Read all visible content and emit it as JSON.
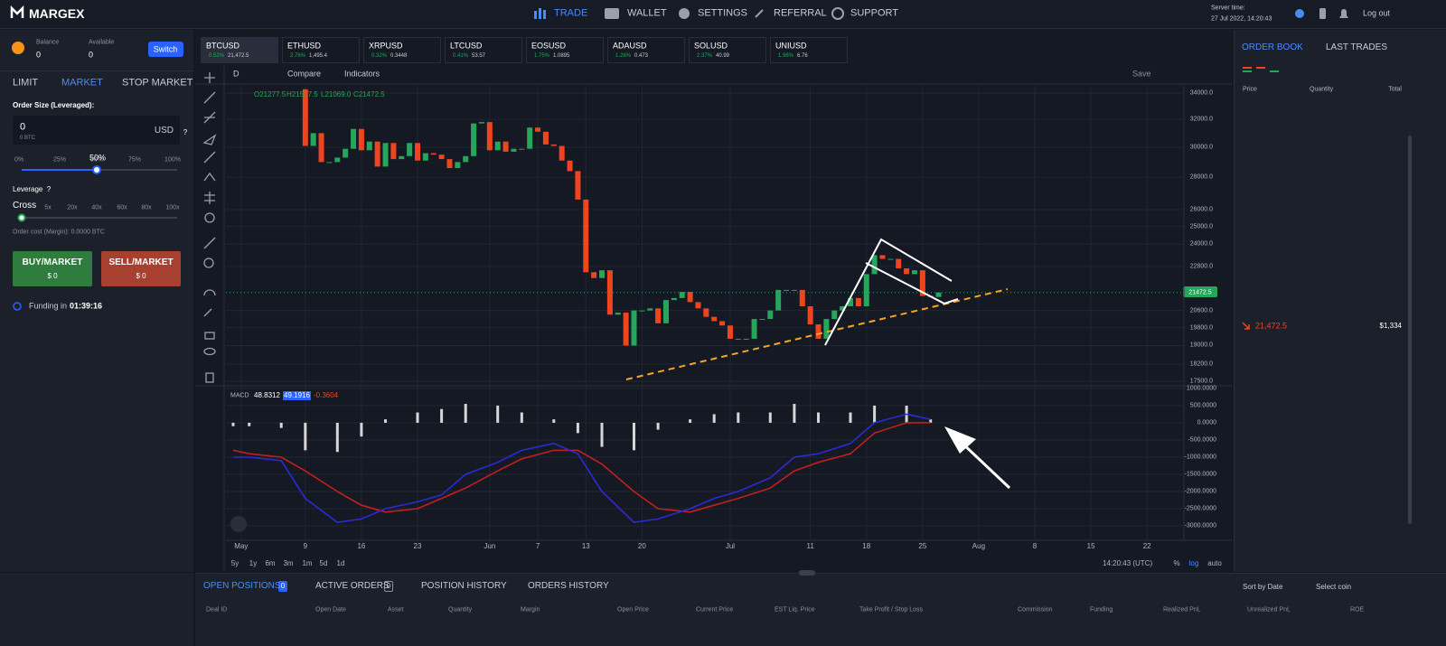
{
  "header": {
    "logo": "MARGEX",
    "nav": [
      "TRADE",
      "WALLET",
      "SETTINGS",
      "REFERRAL",
      "SUPPORT"
    ],
    "server_time_label": "Server time:",
    "server_time": "27 Jul 2022, 14:20:43",
    "logout": "Log out"
  },
  "order_panel": {
    "balance_label": "Balance",
    "balance": "0",
    "available_label": "Available",
    "available": "0",
    "switch": "Switch",
    "tabs": [
      "LIMIT",
      "MARKET",
      "STOP MARKET"
    ],
    "order_size_label": "Order Size (Leveraged):",
    "order_size": "0",
    "order_size_btc": "0 BTC",
    "currency": "USD",
    "help": "?",
    "percent_ticks": [
      "0%",
      "25%",
      "50%",
      "75%",
      "100%"
    ],
    "percent_selected": "50%",
    "leverage_label": "Leverage",
    "leverage_help": "?",
    "margin_mode": "Cross",
    "leverage_ticks": [
      "5x",
      "20x",
      "40x",
      "60x",
      "80x",
      "100x"
    ],
    "order_cost": "Order cost (Margin): 0.0000 BTC",
    "buy": {
      "label": "BUY/MARKET",
      "amount": "$ 0"
    },
    "sell": {
      "label": "SELL/MARKET",
      "amount": "$ 0"
    },
    "funding_label": "Funding in",
    "funding_time": "01:39:16"
  },
  "tickers": [
    {
      "symbol": "BTCUSD",
      "change": "0.52%",
      "price": "21,472.5"
    },
    {
      "symbol": "ETHUSD",
      "change": "2.76%",
      "price": "1,495.4"
    },
    {
      "symbol": "XRPUSD",
      "change": "0.32%",
      "price": "0.3448"
    },
    {
      "symbol": "LTCUSD",
      "change": "0.41%",
      "price": "53.57"
    },
    {
      "symbol": "EOSUSD",
      "change": "1.75%",
      "price": "1.0895"
    },
    {
      "symbol": "ADAUSD",
      "change": "1.26%",
      "price": "0.473"
    },
    {
      "symbol": "SOLUSD",
      "change": "2.37%",
      "price": "40.99"
    },
    {
      "symbol": "UNIUSD",
      "change": "1.96%",
      "price": "6.76"
    }
  ],
  "toolbar": {
    "interval": "D",
    "compare": "Compare",
    "indicators": "Indicators",
    "save": "Save"
  },
  "chart_data": {
    "type": "candlestick",
    "log_scale": true,
    "grid": true,
    "up_color": "#26a65b",
    "down_color": "#f0441f",
    "ohlc_legend": [
      "O21277.5",
      "H21507.5",
      "L21069.0",
      "C21472.5"
    ],
    "open": 34300,
    "x": [
      8,
      9,
      10,
      11,
      12,
      13,
      14,
      15,
      16,
      17,
      18,
      19,
      20,
      21,
      22,
      23,
      24,
      25,
      26,
      27,
      28,
      29,
      30,
      31,
      32,
      33,
      34,
      35,
      36,
      37,
      38,
      39,
      40,
      41,
      42,
      43,
      44,
      45,
      46,
      47,
      48,
      49,
      50,
      51,
      52,
      53,
      54,
      55,
      56,
      57,
      58,
      59,
      60,
      61,
      62,
      63,
      64,
      65,
      66,
      67,
      68,
      69,
      70,
      71,
      72,
      73,
      74,
      75,
      76,
      77,
      78,
      79,
      80,
      81,
      82,
      83,
      84,
      85,
      86,
      87
    ],
    "closes": [
      30100,
      31000,
      29000,
      29000,
      29300,
      29900,
      31300,
      29800,
      30400,
      28700,
      30300,
      29200,
      29400,
      30300,
      29100,
      29600,
      29500,
      29200,
      28600,
      29000,
      29400,
      31700,
      31800,
      29800,
      30400,
      29700,
      29900,
      29900,
      31400,
      31100,
      30200,
      30100,
      29100,
      28400,
      26600,
      22500,
      22200,
      22600,
      20400,
      20500,
      19000,
      20600,
      20600,
      20700,
      20000,
      21100,
      21200,
      21500,
      21000,
      20700,
      20300,
      20100,
      19900,
      19300,
      19300,
      19300,
      20200,
      20200,
      20600,
      21600,
      21600,
      21600,
      20800,
      19950,
      19300,
      20200,
      20600,
      20800,
      21200,
      20800,
      22400,
      23400,
      23200,
      23200,
      22700,
      22400,
      22600,
      21300,
      21250,
      21472.5
    ],
    "xlim": [
      -1.9,
      117.6
    ],
    "xticks": [
      {
        "value": 0,
        "label": "May"
      },
      {
        "value": 8,
        "label": "9"
      },
      {
        "value": 15,
        "label": "16"
      },
      {
        "value": 22,
        "label": "23"
      },
      {
        "value": 31,
        "label": "Jun"
      },
      {
        "value": 37,
        "label": "7"
      },
      {
        "value": 43,
        "label": "13"
      },
      {
        "value": 50,
        "label": "20"
      },
      {
        "value": 61,
        "label": "Jul"
      },
      {
        "value": 71,
        "label": "11"
      },
      {
        "value": 78,
        "label": "18"
      },
      {
        "value": 85,
        "label": "25"
      },
      {
        "value": 92,
        "label": "Aug"
      },
      {
        "value": 99,
        "label": "8"
      },
      {
        "value": 106,
        "label": "15"
      },
      {
        "value": 113,
        "label": "22"
      }
    ],
    "ylim": [
      17390,
      34570
    ],
    "yticks": [
      {
        "value": 34000,
        "label": "34000.0"
      },
      {
        "value": 32000,
        "label": "32000.0"
      },
      {
        "value": 30000,
        "label": "30000.0"
      },
      {
        "value": 28000,
        "label": "28000.0"
      },
      {
        "value": 26000,
        "label": "26000.0"
      },
      {
        "value": 25000,
        "label": "25000.0"
      },
      {
        "value": 24000,
        "label": "24000.0"
      },
      {
        "value": 22800,
        "label": "22800.0"
      },
      {
        "value": 20600,
        "label": "20600.0"
      },
      {
        "value": 19800,
        "label": "19800.0"
      },
      {
        "value": 19000,
        "label": "19000.0"
      },
      {
        "value": 18200,
        "label": "18200.0"
      },
      {
        "value": 17500,
        "label": "17500.0"
      }
    ],
    "last_price": {
      "value": 21472.5,
      "label": "21472.5"
    },
    "macd": {
      "label": "MACD",
      "legend_values": [
        "48.8312",
        "49.1916",
        "-0.3604"
      ],
      "macd_color": "#2b2bd6",
      "signal_color": "#c41f1f",
      "histogram_color": "#d6d6d6",
      "ylim": [
        -3420,
        1050
      ],
      "yticks": [
        {
          "value": 1000,
          "label": "1000.0000"
        },
        {
          "value": 500,
          "label": "500.0000"
        },
        {
          "value": 0,
          "label": "0.0000"
        },
        {
          "value": -500,
          "label": "-500.0000"
        },
        {
          "value": -1000,
          "label": "-1000.0000"
        },
        {
          "value": -1500,
          "label": "-1500.0000"
        },
        {
          "value": -2000,
          "label": "-2000.0000"
        },
        {
          "value": -2500,
          "label": "-2500.0000"
        },
        {
          "value": -3000,
          "label": "-3000.0000"
        }
      ],
      "x": [
        -1,
        1,
        5,
        8,
        12,
        15,
        18,
        22,
        25,
        28,
        32,
        35,
        39,
        42,
        45,
        49,
        52,
        56,
        59,
        62,
        66,
        69,
        72,
        76,
        79,
        83,
        86
      ],
      "macd_values": [
        -1000,
        -1000,
        -1100,
        -2200,
        -2900,
        -2800,
        -2500,
        -2300,
        -2100,
        -1500,
        -1150,
        -800,
        -600,
        -900,
        -2000,
        -2900,
        -2800,
        -2500,
        -2200,
        -2000,
        -1600,
        -1000,
        -900,
        -600,
        0,
        250,
        100
      ],
      "signal_values": [
        -800,
        -900,
        -1000,
        -1400,
        -2000,
        -2400,
        -2600,
        -2500,
        -2200,
        -1900,
        -1400,
        -1050,
        -800,
        -800,
        -1200,
        -2000,
        -2500,
        -2600,
        -2400,
        -2200,
        -1900,
        -1400,
        -1150,
        -900,
        -300,
        0,
        0
      ],
      "histogram": [
        -100,
        -100,
        -150,
        -800,
        -850,
        -400,
        100,
        300,
        400,
        550,
        500,
        300,
        100,
        -300,
        -700,
        -800,
        -200,
        100,
        250,
        300,
        300,
        550,
        300,
        300,
        500,
        500,
        100
      ]
    }
  },
  "chart_footer": {
    "ranges": [
      "5y",
      "1y",
      "6m",
      "3m",
      "1m",
      "5d",
      "1d"
    ],
    "clock": "14:20:43 (UTC)",
    "percent": "%",
    "log": "log",
    "auto": "auto"
  },
  "order_book": {
    "tabs": [
      "ORDER BOOK",
      "LAST TRADES"
    ],
    "columns": [
      "Price",
      "Quantity",
      "Total"
    ],
    "last_price": "21,472.5",
    "last_total": "$1,334"
  },
  "positions": {
    "tabs": [
      "OPEN POSITIONS",
      "ACTIVE ORDERS",
      "POSITION HISTORY",
      "ORDERS HISTORY"
    ],
    "counts": [
      "0",
      "0"
    ],
    "sort": "Sort by Date",
    "select_coin": "Select coin",
    "columns": [
      "Deal ID",
      "Open Date",
      "Asset",
      "Quantity",
      "Margin",
      "Open Price",
      "Current Price",
      "EST Liq. Price",
      "Take Profit / Stop Loss",
      "Commission",
      "Funding",
      "Realized PnL",
      "Unrealized PnL",
      "ROE"
    ]
  }
}
